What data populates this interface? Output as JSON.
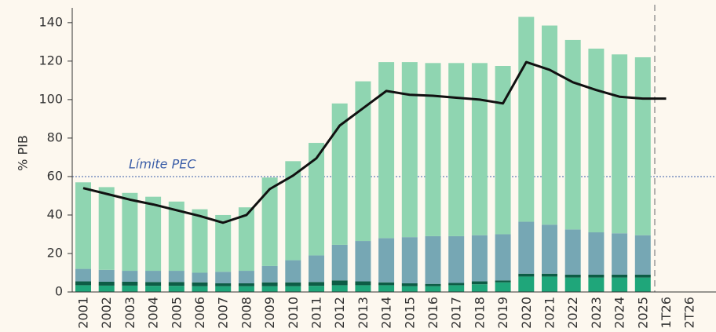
{
  "chart_data": {
    "type": "bar",
    "stacked": true,
    "ylabel": "% PIB",
    "categories": [
      "2001",
      "2002",
      "2003",
      "2004",
      "2005",
      "2006",
      "2007",
      "2008",
      "2009",
      "2010",
      "2011",
      "2012",
      "2013",
      "2014",
      "2015",
      "2016",
      "2017",
      "2018",
      "2019",
      "2020",
      "2021",
      "2022",
      "2023",
      "2024",
      "2025",
      "1T26",
      "2T26"
    ],
    "series": [
      {
        "type": "bar",
        "color": "#1fa67a",
        "values": [
          3.5,
          3.3,
          3.3,
          3.2,
          3.2,
          3,
          3,
          3,
          3,
          3,
          3.2,
          3.5,
          3.5,
          3.5,
          3,
          3,
          3.5,
          4,
          5,
          8,
          8,
          7.5,
          7.5,
          7.5,
          7.5,
          null,
          null
        ]
      },
      {
        "type": "bar",
        "color": "#0d5c45",
        "values": [
          2,
          2,
          2,
          2,
          2,
          2,
          1.5,
          1.5,
          2,
          2,
          2,
          2.5,
          2,
          1.5,
          1.5,
          1.2,
          1.2,
          1.5,
          1,
          1.5,
          1.5,
          1.5,
          1.5,
          1.5,
          1.5,
          null,
          null
        ]
      },
      {
        "type": "bar",
        "color": "#76a7b4",
        "values": [
          6.5,
          6.2,
          5.7,
          5.8,
          5.8,
          5,
          6,
          6.5,
          8.5,
          11.5,
          13.8,
          18.5,
          21,
          23,
          24,
          24.8,
          24.3,
          24,
          24,
          27,
          25.5,
          23.5,
          22,
          21.5,
          20.5,
          null,
          null
        ]
      },
      {
        "type": "bar",
        "color": "#8fd5b1",
        "values": [
          45,
          43,
          40.5,
          38.5,
          36,
          33,
          29.5,
          33,
          46,
          51.5,
          58.5,
          73.5,
          83,
          91.5,
          91,
          90,
          90,
          89.5,
          87.5,
          106.5,
          103.5,
          98.5,
          95.5,
          93,
          92.5,
          null,
          null
        ]
      },
      {
        "type": "line",
        "color": "#111111",
        "values": [
          54,
          51,
          48,
          45.5,
          42.5,
          39.5,
          36,
          40,
          53.5,
          60.5,
          69.5,
          86.5,
          95.5,
          104.5,
          102.5,
          102,
          101,
          100,
          98,
          119.5,
          115.5,
          109,
          105,
          101.5,
          100.5,
          100.5,
          null
        ]
      }
    ],
    "reference_line": {
      "value": 60,
      "label": "Límite PEC",
      "color": "#3b5ea8"
    },
    "ylim": [
      0,
      145
    ],
    "yticks": [
      0,
      20,
      40,
      60,
      80,
      100,
      120,
      140
    ]
  }
}
